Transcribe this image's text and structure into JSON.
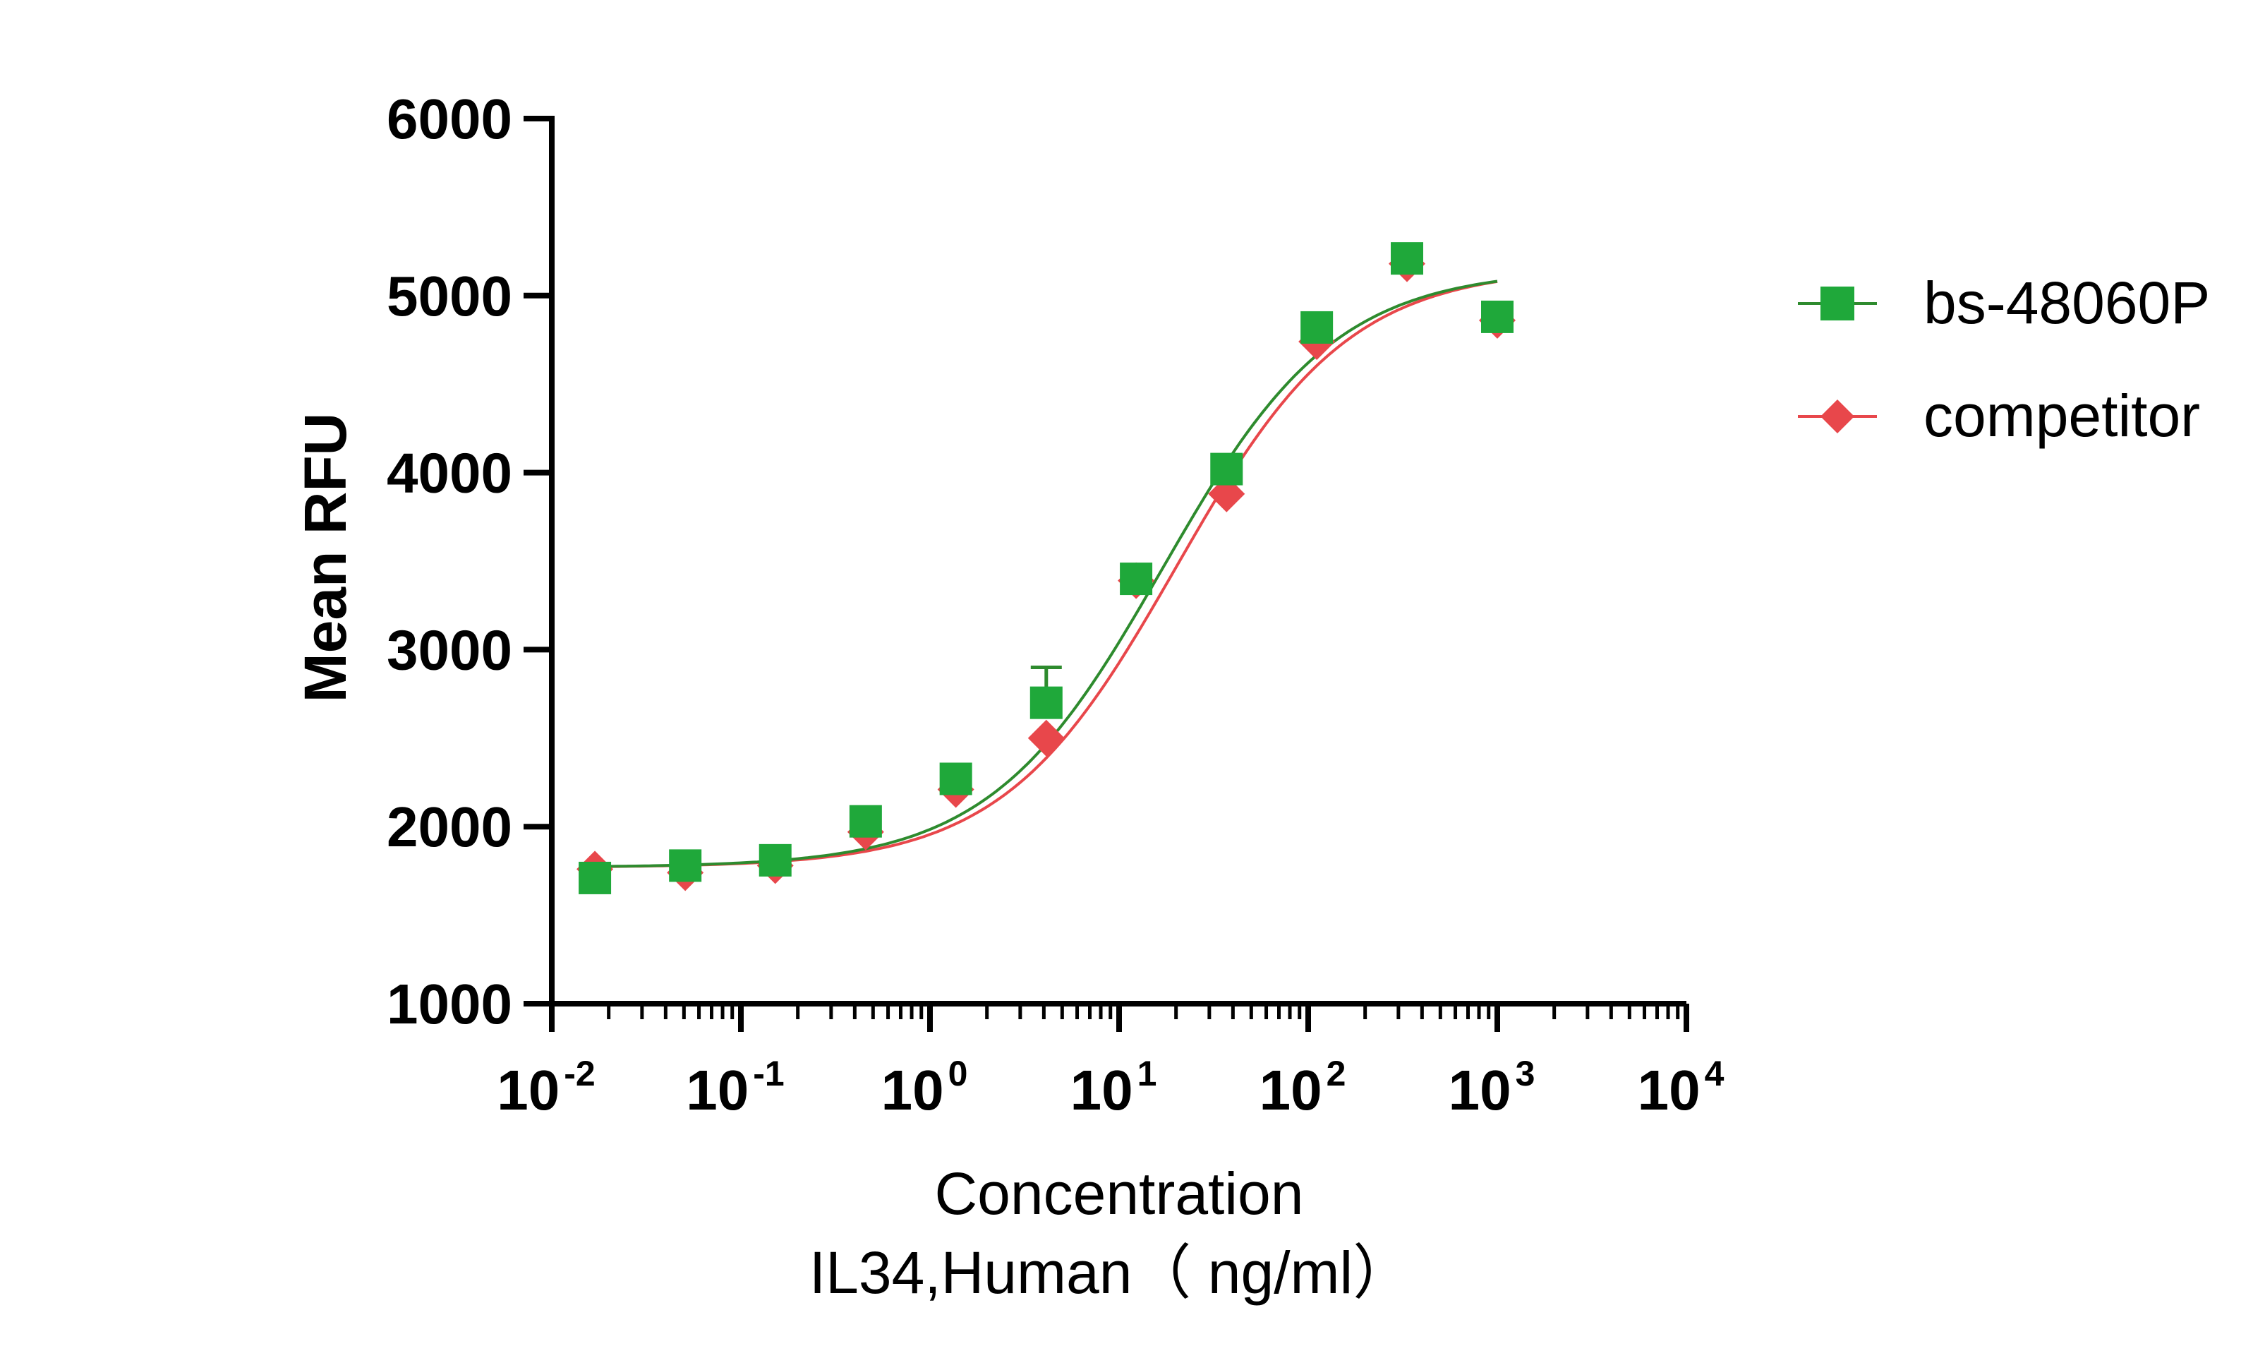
{
  "chart_data": {
    "type": "scatter",
    "title": "",
    "xlabel": "Concentration",
    "xlabel_line2": "IL34,Human（ ng/ml）",
    "ylabel": "Mean RFU",
    "x_scale": "log",
    "xlim": [
      0.01,
      10000
    ],
    "ylim": [
      1000,
      6000
    ],
    "x_ticks": [
      {
        "base": "10",
        "exp": "-2",
        "value": 0.01
      },
      {
        "base": "10",
        "exp": "-1",
        "value": 0.1
      },
      {
        "base": "10",
        "exp": "0",
        "value": 1
      },
      {
        "base": "10",
        "exp": "1",
        "value": 10
      },
      {
        "base": "10",
        "exp": "2",
        "value": 100
      },
      {
        "base": "10",
        "exp": "3",
        "value": 1000
      },
      {
        "base": "10",
        "exp": "4",
        "value": 10000
      }
    ],
    "y_ticks": [
      "1000",
      "2000",
      "3000",
      "4000",
      "5000",
      "6000"
    ],
    "grid": false,
    "legend_position": "right",
    "series": [
      {
        "name": "bs-48060P",
        "color": "#1fa83a",
        "curve_color": "#2e8b2e",
        "marker": "square",
        "x": [
          0.0169,
          0.0508,
          0.152,
          0.457,
          1.37,
          4.12,
          12.3,
          37.0,
          111,
          333,
          1000
        ],
        "y": [
          1710,
          1780,
          1810,
          2030,
          2270,
          2700,
          3400,
          4020,
          4820,
          5210,
          4880
        ],
        "yerr": [
          0,
          0,
          0,
          0,
          0,
          200,
          0,
          0,
          0,
          0,
          0
        ],
        "fit": {
          "bottom": 1770,
          "top": 5150,
          "ec50": 17,
          "hill": 0.95
        }
      },
      {
        "name": "competitor",
        "color": "#e8474b",
        "curve_color": "#e8474b",
        "marker": "diamond",
        "x": [
          0.0169,
          0.0508,
          0.152,
          0.457,
          1.37,
          4.12,
          12.3,
          37.0,
          111,
          333,
          1000
        ],
        "y": [
          1760,
          1740,
          1780,
          1970,
          2210,
          2500,
          3390,
          3880,
          4740,
          5180,
          4860
        ],
        "fit": {
          "bottom": 1770,
          "top": 5160,
          "ec50": 20,
          "hill": 0.95
        }
      }
    ]
  }
}
